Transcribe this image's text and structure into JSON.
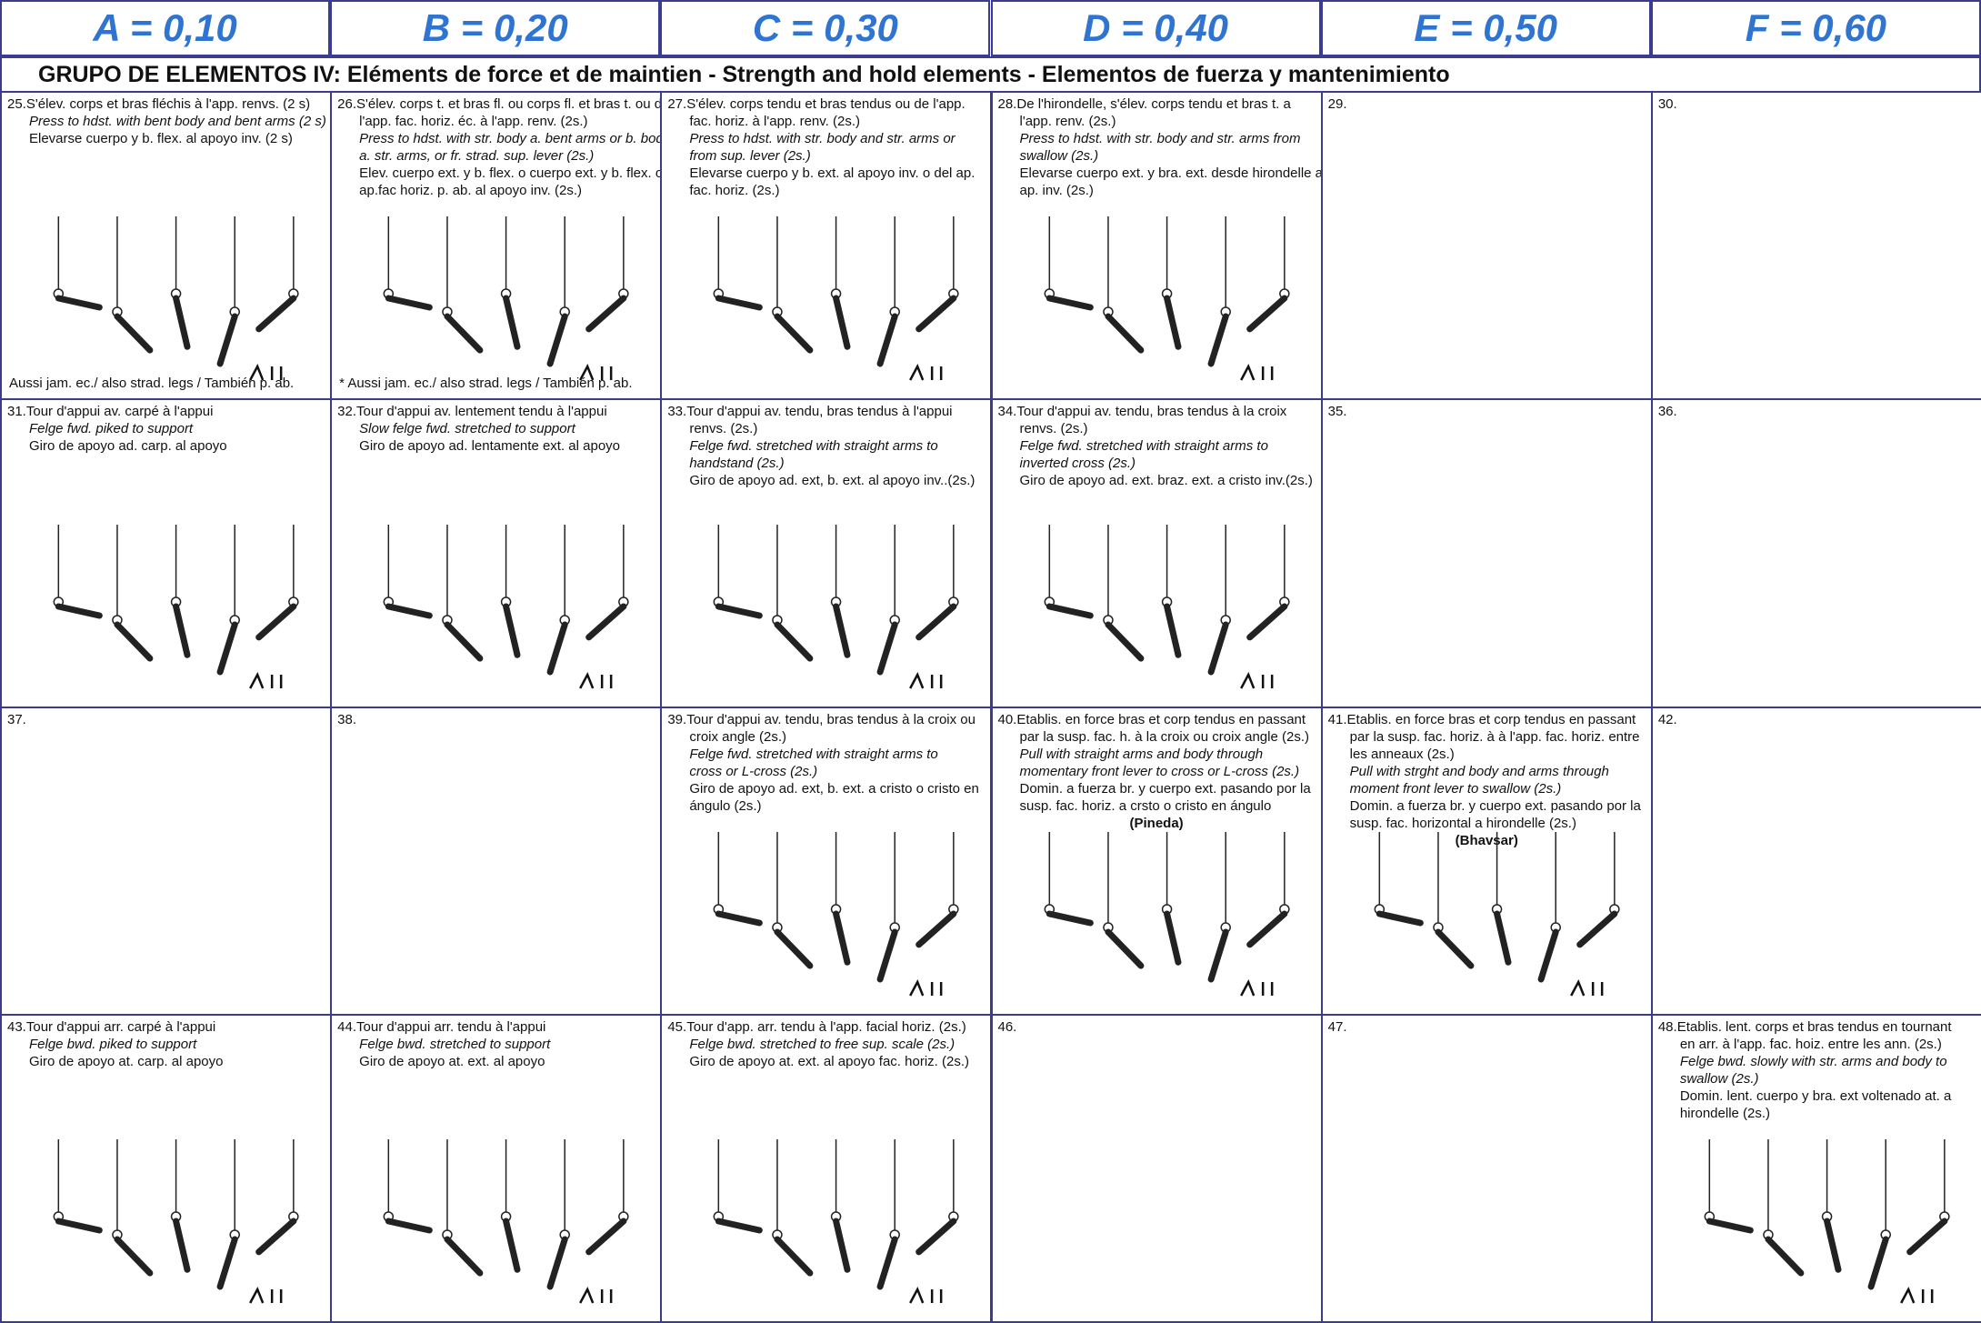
{
  "header": {
    "columns": [
      "A = 0,10",
      "B = 0,20",
      "C = 0,30",
      "D = 0,40",
      "E = 0,50",
      "F = 0,60"
    ]
  },
  "group_title": "GRUPO DE ELEMENTOS IV:  Eléments de force et de maintien - Strength and hold elements - Elementos de fuerza y mantenimiento",
  "rows": [
    [
      {
        "number": "25.",
        "fr": [
          "S'élev. corps et bras fléchis à l'app. renvs. (2 s)"
        ],
        "en": [
          "Press to hdst. with bent body and bent arms (2 s)"
        ],
        "es": [
          "Elevarse cuerpo y b. flex. al apoyo inv. (2 s)"
        ],
        "note": "Aussi jam. ec./ also strad. legs / También p. ab."
      },
      {
        "number": "26.",
        "fr": [
          "S'élev. corps t. et bras fl. ou corps fl. et bras t. ou de",
          "l'app. fac. horiz. éc. à l'app. renv. (2s.)"
        ],
        "en": [
          "Press to hdst. with str. body a. bent arms or b. body",
          "a. str. arms, or fr. strad. sup. lever (2s.)"
        ],
        "es": [
          "Elev. cuerpo ext. y b. flex. o cuerpo ext. y b. flex. o del",
          "ap.fac horiz. p. ab. al apoyo inv. (2s.)"
        ],
        "note": "* Aussi jam. ec./ also strad. legs / También p. ab."
      },
      {
        "number": "27.",
        "fr": [
          "S'élev. corps tendu et bras tendus ou de l'app.",
          "fac. horiz. à l'app. renv. (2s.)"
        ],
        "en": [
          "Press to hdst. with str. body and str. arms or",
          "from sup. lever (2s.)"
        ],
        "es": [
          "Elevarse cuerpo y b. ext. al apoyo inv. o del ap.",
          "fac. horiz. (2s.)"
        ]
      },
      {
        "number": "28.",
        "fr": [
          "De l'hirondelle, s'élev. corps tendu et bras t. a",
          "l'app. renv. (2s.)"
        ],
        "en": [
          "Press to hdst. with str. body and str. arms  from",
          "swallow (2s.)"
        ],
        "es": [
          "Elevarse cuerpo ext. y bra. ext. desde hirondelle al",
          "ap. inv. (2s.)"
        ]
      },
      {
        "number": "29."
      },
      {
        "number": "30."
      }
    ],
    [
      {
        "number": "31.",
        "fr": [
          "Tour d'appui av. carpé à l'appui"
        ],
        "en": [
          "Felge fwd. piked to support"
        ],
        "es": [
          "Giro de apoyo ad. carp. al apoyo"
        ]
      },
      {
        "number": "32.",
        "fr": [
          "Tour d'appui av. lentement tendu à l'appui"
        ],
        "en": [
          "Slow felge fwd. stretched to support"
        ],
        "es": [
          "Giro de apoyo ad. lentamente ext. al apoyo"
        ]
      },
      {
        "number": "33.",
        "fr": [
          "Tour d'appui av. tendu, bras tendus à l'appui",
          "renvs. (2s.)"
        ],
        "en": [
          "Felge fwd. stretched with straight arms to",
          "handstand (2s.)"
        ],
        "es": [
          "Giro de apoyo ad. ext, b. ext. al apoyo  inv..(2s.)"
        ]
      },
      {
        "number": "34.",
        "fr": [
          "Tour d'appui av. tendu, bras tendus à la croix",
          "renvs. (2s.)"
        ],
        "en": [
          "Felge fwd. stretched with straight arms to",
          "inverted cross (2s.)"
        ],
        "es": [
          "Giro de apoyo ad. ext. braz. ext.  a cristo inv.(2s.)"
        ]
      },
      {
        "number": "35."
      },
      {
        "number": "36."
      }
    ],
    [
      {
        "number": "37."
      },
      {
        "number": "38."
      },
      {
        "number": "39.",
        "fr": [
          "Tour d'appui av. tendu, bras tendus à la croix ou",
          "croix angle (2s.)"
        ],
        "en": [
          "Felge fwd. stretched with straight arms to",
          "cross or L-cross (2s.)"
        ],
        "es": [
          "Giro de apoyo ad. ext, b. ext. a cristo o cristo en",
          "ángulo (2s.)"
        ]
      },
      {
        "number": "40.",
        "fr": [
          "Etablis. en force bras et corp tendus en passant",
          "par la susp. fac. h. à la croix ou croix angle (2s.)"
        ],
        "en": [
          "Pull with straight arms and body through",
          "momentary front lever to cross or L-cross (2s.)"
        ],
        "es": [
          "Domin. a fuerza br. y cuerpo ext. pasando por la",
          "susp. fac. horiz. a crsto o cristo en ángulo"
        ],
        "name": "(Pineda)"
      },
      {
        "number": "41.",
        "fr": [
          "Etablis. en force bras et corp tendus en passant",
          "par la susp. fac. horiz. à à l'app. fac. horiz. entre",
          "les anneaux (2s.)"
        ],
        "en": [
          "Pull with strght and body and arms through",
          "moment front lever to swallow (2s.)"
        ],
        "es": [
          "Domin. a fuerza br. y cuerpo ext. pasando por la",
          "susp. fac. horizontal a hirondelle (2s.)"
        ],
        "name": "(Bhavsar)"
      },
      {
        "number": "42."
      }
    ],
    [
      {
        "number": "43.",
        "fr": [
          "Tour d'appui arr. carpé à l'appui"
        ],
        "en": [
          "Felge bwd. piked to support"
        ],
        "es": [
          "Giro de apoyo at. carp. al apoyo"
        ]
      },
      {
        "number": "44.",
        "fr": [
          "Tour d'appui arr. tendu à l'appui"
        ],
        "en": [
          "Felge bwd. stretched to support"
        ],
        "es": [
          "Giro de apoyo at. ext. al apoyo"
        ]
      },
      {
        "number": "45.",
        "fr": [
          "Tour d'app. arr. tendu à l'app. facial horiz. (2s.)"
        ],
        "en": [
          "Felge bwd. stretched to free sup. scale (2s.)"
        ],
        "es": [
          "Giro de apoyo at. ext. al apoyo fac. horiz. (2s.)"
        ]
      },
      {
        "number": "46."
      },
      {
        "number": "47."
      },
      {
        "number": "48.",
        "fr": [
          "Etablis. lent. corps et bras tendus en tournant",
          "en arr. à l'app. fac. hoiz. entre les ann. (2s.)"
        ],
        "en": [
          "Felge bwd. slowly with str. arms and body to",
          "swallow (2s.)"
        ],
        "es": [
          "Domin. lent. cuerpo y bra. ext voltenado at. a",
          "hirondelle (2s.)"
        ]
      }
    ]
  ]
}
